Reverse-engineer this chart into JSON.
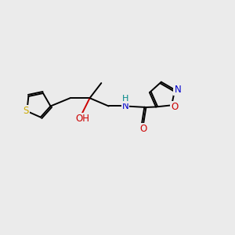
{
  "bg_color": "#ebebeb",
  "atom_colors": {
    "S": "#ccaa00",
    "O": "#cc0000",
    "N": "#0000cc",
    "NH": "#008888",
    "C": "#000000"
  },
  "bond_color": "#000000",
  "bond_width": 1.4,
  "dbl_sep": 0.07
}
